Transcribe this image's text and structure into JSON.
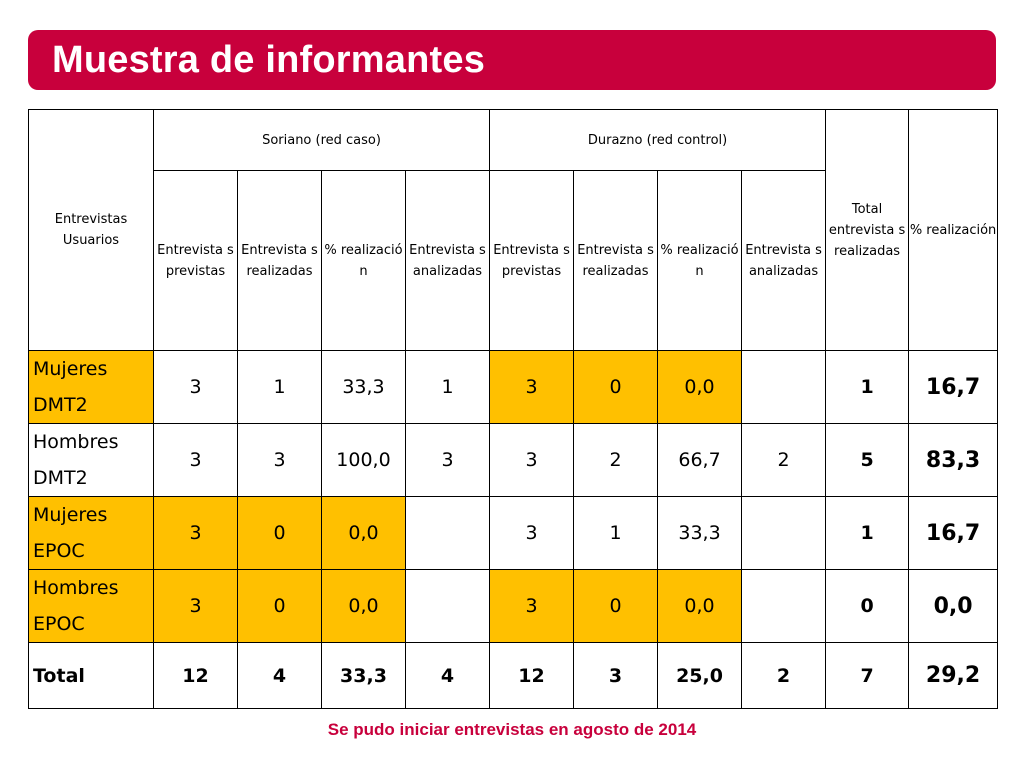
{
  "title": "Muestra de informantes",
  "colors": {
    "title_bg": "#c8003c",
    "highlight": "#ffc000",
    "footnote": "#c8003c"
  },
  "header": {
    "row_label": "Entrevistas Usuarios",
    "group_soriano": "Soriano (red caso)",
    "group_durazno": "Durazno (red control)",
    "total_col": "Total entrevista s realizadas",
    "pct_col": "% realización",
    "sub": {
      "previstas": "Entrevista s previstas",
      "realizadas": "Entrevista s realizadas",
      "pct": "% realizació n",
      "analizadas": "Entrevista s analizadas"
    }
  },
  "rows": [
    {
      "label": "Mujeres DMT2",
      "values": [
        "3",
        "1",
        "33,3",
        "1",
        "3",
        "0",
        "0,0",
        "",
        "1",
        "16,7"
      ],
      "label_highlight": true,
      "durazno_highlight": true,
      "soriano_highlight": false
    },
    {
      "label": "Hombres DMT2",
      "values": [
        "3",
        "3",
        "100,0",
        "3",
        "3",
        "2",
        "66,7",
        "2",
        "5",
        "83,3"
      ],
      "label_highlight": false,
      "durazno_highlight": false,
      "soriano_highlight": false
    },
    {
      "label": "Mujeres EPOC",
      "values": [
        "3",
        "0",
        "0,0",
        "",
        "3",
        "1",
        "33,3",
        "",
        "1",
        "16,7"
      ],
      "label_highlight": true,
      "durazno_highlight": false,
      "soriano_highlight": true
    },
    {
      "label": "Hombres EPOC",
      "values": [
        "3",
        "0",
        "0,0",
        "",
        "3",
        "0",
        "0,0",
        "",
        "0",
        "0,0"
      ],
      "label_highlight": true,
      "durazno_highlight": true,
      "soriano_highlight": true
    },
    {
      "label": "Total",
      "values": [
        "12",
        "4",
        "33,3",
        "4",
        "12",
        "3",
        "25,0",
        "2",
        "7",
        "29,2"
      ],
      "label_highlight": false,
      "durazno_highlight": false,
      "soriano_highlight": false
    }
  ],
  "footnote": "Se pudo iniciar entrevistas en agosto de 2014"
}
